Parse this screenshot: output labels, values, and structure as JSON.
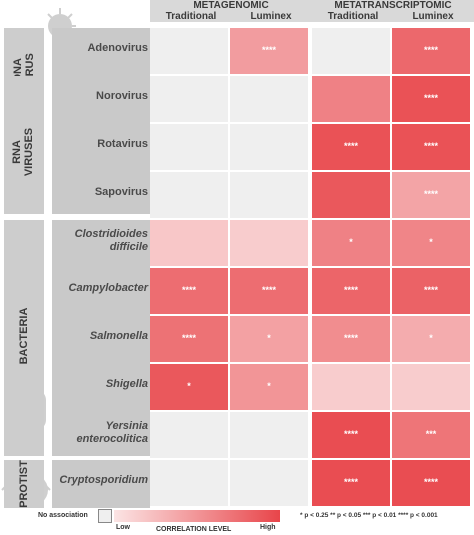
{
  "chart_data": {
    "type": "heatmap",
    "method_groups": [
      "METAGENOMIC",
      "METATRANSCRIPTOMIC"
    ],
    "columns": [
      "Traditional",
      "Luminex",
      "Traditional",
      "Luminex"
    ],
    "row_groups": [
      {
        "label": "DNA\nVIRUS",
        "rows": [
          "Adenovirus"
        ]
      },
      {
        "label": "RNA\nVIRUSES",
        "rows": [
          "Norovirus",
          "Rotavirus",
          "Sapovirus"
        ]
      },
      {
        "label": "BACTERIA",
        "rows": [
          "Clostridioides difficile",
          "Campylobacter",
          "Salmonella",
          "Shigella",
          "Yersinia enterocolitica"
        ]
      },
      {
        "label": "PROTIST",
        "rows": [
          "Cryptosporidium"
        ]
      }
    ],
    "rows": [
      {
        "label": "Adenovirus",
        "italic": false,
        "values": [
          0,
          0.45,
          0,
          0.78
        ],
        "sig": [
          "",
          "****",
          "",
          "****"
        ]
      },
      {
        "label": "Norovirus",
        "italic": false,
        "values": [
          0,
          0,
          0.62,
          0.92
        ],
        "sig": [
          "",
          "",
          "",
          "****"
        ]
      },
      {
        "label": "Rotavirus",
        "italic": false,
        "values": [
          0,
          0,
          0.92,
          0.92
        ],
        "sig": [
          "",
          "",
          "****",
          "****"
        ]
      },
      {
        "label": "Sapovirus",
        "italic": false,
        "values": [
          0,
          0,
          0.88,
          0.4
        ],
        "sig": [
          "",
          "",
          "",
          "****"
        ]
      },
      {
        "label": "Clostridioides difficile",
        "italic": true,
        "values": [
          0.18,
          0.15,
          0.62,
          0.6
        ],
        "sig": [
          "",
          "",
          "*",
          "*"
        ]
      },
      {
        "label": "Campylobacter",
        "italic": true,
        "values": [
          0.75,
          0.75,
          0.8,
          0.82
        ],
        "sig": [
          "****",
          "****",
          "****",
          "****"
        ]
      },
      {
        "label": "Salmonella",
        "italic": true,
        "values": [
          0.72,
          0.42,
          0.55,
          0.35
        ],
        "sig": [
          "****",
          "*",
          "****",
          "*"
        ]
      },
      {
        "label": "Shigella",
        "italic": true,
        "values": [
          0.88,
          0.5,
          0.15,
          0.15
        ],
        "sig": [
          "*",
          "*",
          "",
          ""
        ]
      },
      {
        "label": "Yersinia enterocolitica",
        "italic": true,
        "values": [
          0,
          0,
          0.95,
          0.7
        ],
        "sig": [
          "",
          "",
          "****",
          "***"
        ]
      },
      {
        "label": "Cryptosporidium",
        "italic": true,
        "values": [
          0,
          0,
          0.95,
          0.95
        ],
        "sig": [
          "",
          "",
          "****",
          "****"
        ]
      }
    ],
    "colors": {
      "none": "#efefef",
      "low": "#fbe4e4",
      "high": "#e8454a"
    },
    "legend": {
      "no_association": "No association",
      "low": "Low",
      "title": "CORRELATION LEVEL",
      "high": "High",
      "significance": "* p < 0.25 ** p < 0.05 *** p < 0.01 **** p < 0.001"
    }
  }
}
